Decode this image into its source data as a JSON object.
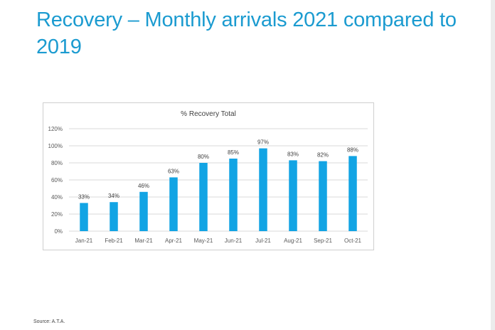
{
  "slide": {
    "title": "Recovery – Monthly arrivals 2021 compared to 2019",
    "source": "Source: A.T.A.",
    "accent_color": "#1b9bd0"
  },
  "chart_data": {
    "type": "bar",
    "title": "% Recovery Total",
    "categories": [
      "Jan-21",
      "Feb-21",
      "Mar-21",
      "Apr-21",
      "May-21",
      "Jun-21",
      "Jul-21",
      "Aug-21",
      "Sep-21",
      "Oct-21"
    ],
    "values": [
      33,
      34,
      46,
      63,
      80,
      85,
      97,
      83,
      82,
      88
    ],
    "data_labels": [
      "33%",
      "34%",
      "46%",
      "63%",
      "80%",
      "85%",
      "97%",
      "83%",
      "82%",
      "88%"
    ],
    "y_ticks": [
      0,
      20,
      40,
      60,
      80,
      100,
      120
    ],
    "y_tick_labels": [
      "0%",
      "20%",
      "40%",
      "60%",
      "80%",
      "100%",
      "120%"
    ],
    "ylim": [
      0,
      120
    ],
    "xlabel": "",
    "ylabel": "",
    "grid": true,
    "legend": "none",
    "bar_color": "#12a4e4",
    "grid_color": "#d9d9d9"
  }
}
